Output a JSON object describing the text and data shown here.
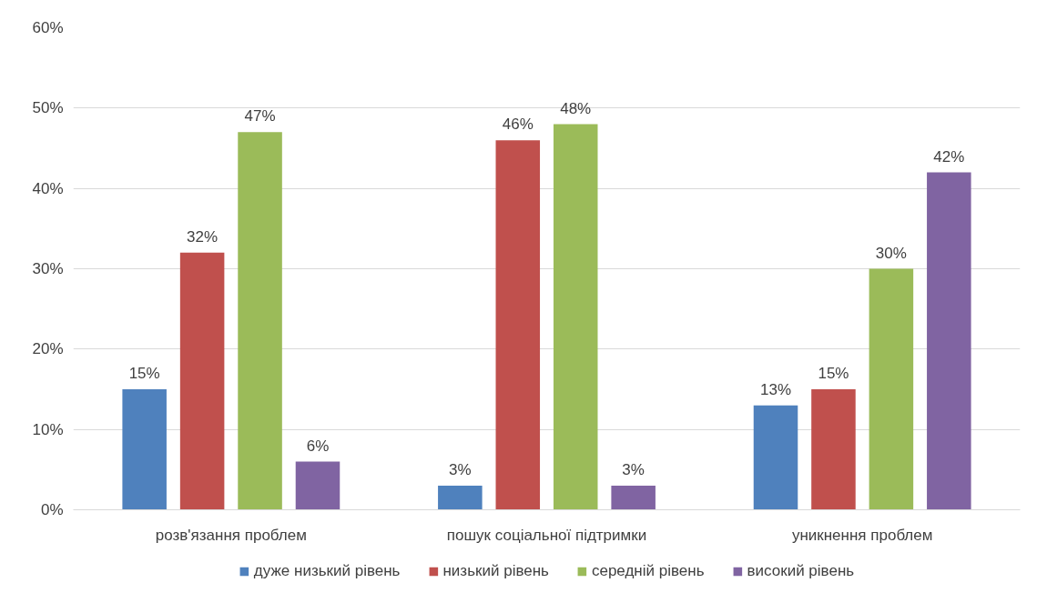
{
  "chart_data": {
    "type": "bar",
    "categories": [
      "розв'язання проблем",
      "пошук соціальної підтримки",
      "уникнення проблем"
    ],
    "series": [
      {
        "name": "дуже низький рівень",
        "color": "#4f81bd",
        "values": [
          15,
          3,
          13
        ],
        "value_labels": [
          "15%",
          "3%",
          "13%"
        ]
      },
      {
        "name": "низький рівень",
        "color": "#c0504d",
        "values": [
          32,
          46,
          15
        ],
        "value_labels": [
          "32%",
          "46%",
          "15%"
        ]
      },
      {
        "name": "середній рівень",
        "color": "#9bbb59",
        "values": [
          47,
          48,
          30
        ],
        "value_labels": [
          "47%",
          "48%",
          "30%"
        ]
      },
      {
        "name": "високий рівень",
        "color": "#8064a2",
        "values": [
          6,
          3,
          42
        ],
        "value_labels": [
          "6%",
          "3%",
          "42%"
        ]
      }
    ],
    "ylim": [
      0,
      60
    ],
    "yticks": [
      {
        "value": 0,
        "label": "0%"
      },
      {
        "value": 10,
        "label": "10%"
      },
      {
        "value": 20,
        "label": "20%"
      },
      {
        "value": 30,
        "label": "30%"
      },
      {
        "value": 40,
        "label": "40%"
      },
      {
        "value": 50,
        "label": "50%"
      },
      {
        "value": 60,
        "label": "60%"
      }
    ],
    "grid": "y",
    "legend": "bottom"
  }
}
